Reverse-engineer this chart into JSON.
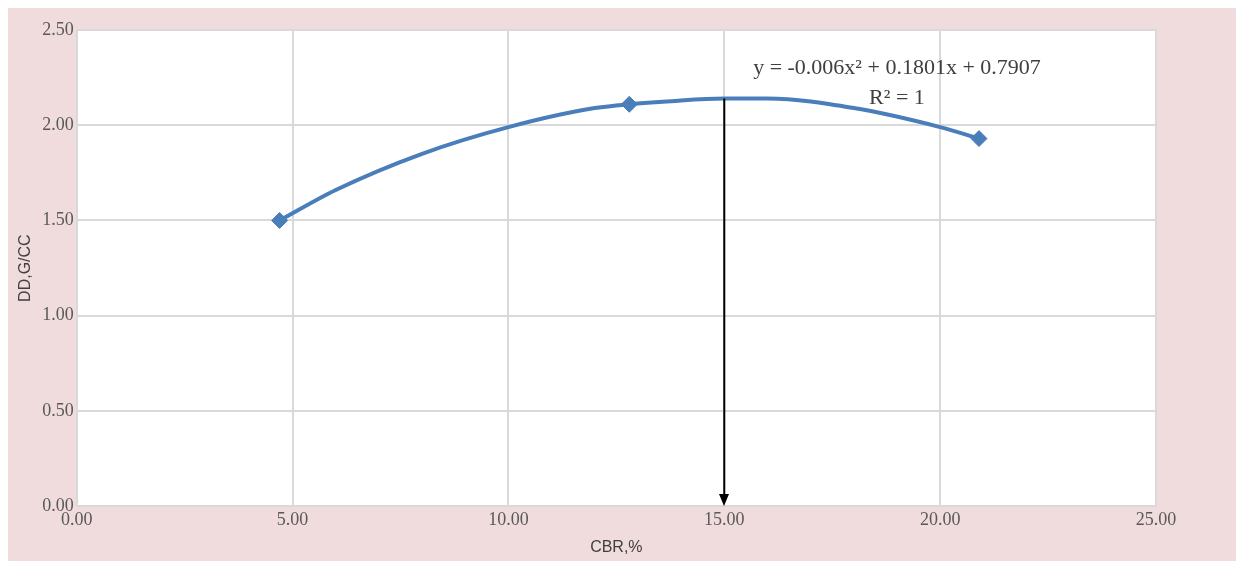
{
  "chart_data": {
    "type": "scatter",
    "xlabel": "CBR,%",
    "ylabel": "DD,G/CC",
    "xlim": [
      0,
      25
    ],
    "xticks": [
      {
        "value": 0,
        "label": "0.00"
      },
      {
        "value": 5,
        "label": "5.00"
      },
      {
        "value": 10,
        "label": "10.00"
      },
      {
        "value": 15,
        "label": "15.00"
      },
      {
        "value": 20,
        "label": "20.00"
      },
      {
        "value": 25,
        "label": "25.00"
      }
    ],
    "ylim": [
      0,
      2.5
    ],
    "yticks": [
      {
        "value": 0,
        "label": "0.00"
      },
      {
        "value": 0.5,
        "label": "0.50"
      },
      {
        "value": 1,
        "label": "1.00"
      },
      {
        "value": 1.5,
        "label": "1.50"
      },
      {
        "value": 2,
        "label": "2.00"
      },
      {
        "value": 2.5,
        "label": "2.50"
      }
    ],
    "grid": true,
    "legend": false,
    "series": [
      {
        "type": "scatter",
        "marker": "diamond",
        "color": "#4a7ebb",
        "x": [
          4.7,
          12.8,
          20.9
        ],
        "values": [
          1.5,
          2.11,
          1.93
        ]
      },
      {
        "type": "line",
        "marker": "none",
        "color": "#4a7ebb",
        "x": [
          4.7,
          6,
          8,
          10,
          12,
          14,
          15,
          16,
          18,
          20,
          20.9
        ],
        "values": [
          1.5,
          1.66,
          1.85,
          1.99,
          2.09,
          2.13,
          2.14,
          2.14,
          2.09,
          1.99,
          1.93
        ]
      }
    ],
    "ref_lines": [
      {
        "axis": "x",
        "value": 15,
        "color": "#000000"
      }
    ],
    "annotations": [
      "y = -0.006x² + 0.1801x + 0.7907",
      "R² = 1"
    ]
  }
}
